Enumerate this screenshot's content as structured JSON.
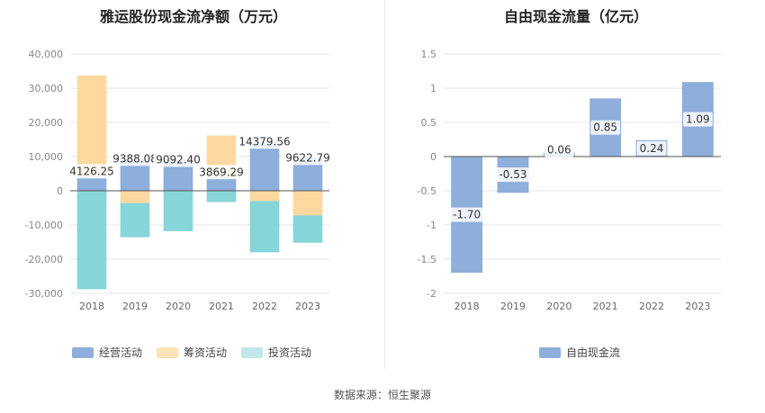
{
  "source_text": "数据来源：恒生聚源",
  "chart_data": [
    {
      "type": "bar",
      "stacked": true,
      "title": "雅运股份现金流净额（万元）",
      "categories": [
        "2018",
        "2019",
        "2020",
        "2021",
        "2022",
        "2023"
      ],
      "ylim": [
        -30000,
        40000
      ],
      "yticks": [
        40000,
        30000,
        20000,
        10000,
        0,
        -10000,
        -20000,
        -30000
      ],
      "ytick_labels": [
        "40,000",
        "30,000",
        "20,000",
        "10,000",
        "0",
        "-10,000",
        "-20,000",
        "-30,000"
      ],
      "series": [
        {
          "name": "经营活动",
          "color": "#8eaedb",
          "values": [
            4126.25,
            9388.08,
            9092.4,
            3869.29,
            14379.56,
            9622.79
          ]
        },
        {
          "name": "筹资活动",
          "color": "#fdd99f",
          "values": [
            29600,
            -3600,
            0,
            12300,
            -3000,
            -7200
          ]
        },
        {
          "name": "投资活动",
          "color": "#86d5d8",
          "values": [
            -28800,
            -10000,
            -11800,
            -3300,
            -15000,
            -8000
          ]
        }
      ],
      "data_labels": [
        "4126.25",
        "9388.08",
        "9092.40",
        "3869.29",
        "14379.56",
        "9622.79"
      ],
      "legend": [
        "经营活动",
        "筹资活动",
        "投资活动"
      ],
      "legend_colors": [
        "#8eaedb",
        "#fde3b8",
        "#c1e8ea"
      ]
    },
    {
      "type": "bar",
      "title": "自由现金流量（亿元）",
      "categories": [
        "2018",
        "2019",
        "2020",
        "2021",
        "2022",
        "2023"
      ],
      "ylim": [
        -2,
        1.5
      ],
      "yticks": [
        1.5,
        1,
        0.5,
        0,
        -0.5,
        -1,
        -1.5,
        -2
      ],
      "ytick_labels": [
        "1.5",
        "1",
        "0.5",
        "0",
        "-0.5",
        "-1",
        "-1.5",
        "-2"
      ],
      "series": [
        {
          "name": "自由现金流",
          "color": "#8eaedb",
          "values": [
            -1.7,
            -0.53,
            0.06,
            0.85,
            0.24,
            1.09
          ]
        }
      ],
      "data_labels": [
        "-1.70",
        "-0.53",
        "0.06",
        "0.85",
        "0.24",
        "1.09"
      ],
      "legend": [
        "自由现金流"
      ],
      "legend_colors": [
        "#8eaedb"
      ]
    }
  ]
}
